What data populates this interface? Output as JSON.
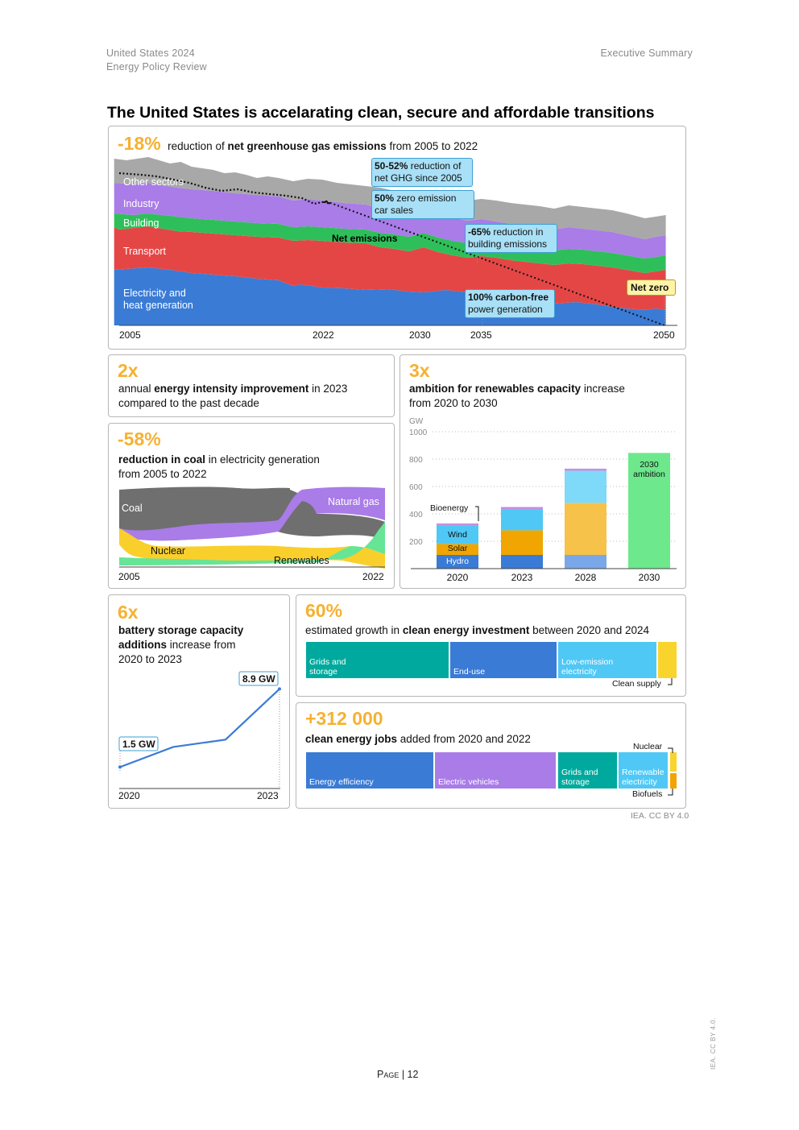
{
  "header": {
    "left_line1": "United States 2024",
    "left_line2": "Energy Policy Review",
    "right": "Executive Summary"
  },
  "title": "The United States is accelarating clean, secure and affordable transitions",
  "colors": {
    "accent": "#f6b131",
    "electricity": "#3a7bd5",
    "transport": "#e44646",
    "building": "#2fbf5a",
    "industry": "#a97ce8",
    "other": "#a8a8a8",
    "callout_bg": "#a8e0f7",
    "callout_border": "#3d9fd3",
    "netzero_bg": "#fff3a8"
  },
  "ghg": {
    "stat": "-18%",
    "desc_pre": "reduction",
    "desc_mid1": " of ",
    "desc_bold": "net greenhouse gas emissions",
    "desc_post": " from 2005 to 2022",
    "layers": [
      "Other sectors",
      "Industry",
      "Building",
      "Transport",
      "Electricity and",
      "heat generation"
    ],
    "net_label": "Net emissions",
    "axis": [
      "2005",
      "2022",
      "2030",
      "2035",
      "2050"
    ],
    "callouts": {
      "c1_bold": "50-52%",
      "c1_rest": " reduction of",
      "c1_line2": "net GHG since 2005",
      "c2_bold": "50%",
      "c2_rest": " zero emission",
      "c2_line2": "car sales",
      "c3_bold": "-65%",
      "c3_rest": " reduction in",
      "c3_line2": "building emissions",
      "c4_bold": "100% carbon-free",
      "c4_line2": "power generation",
      "c5": "Net zero"
    }
  },
  "intensity": {
    "stat": "2x",
    "pre": "annual ",
    "bold": "energy intensity improvement",
    "post": " in 2023",
    "line2": "compared to the past decade"
  },
  "coal": {
    "stat": "-58%",
    "bold": "reduction in coal",
    "post": " in electricity generation",
    "line2": "from 2005 to 2022",
    "labels": {
      "coal": "Coal",
      "gas": "Natural gas",
      "nuclear": "Nuclear",
      "renewables": "Renewables"
    },
    "axis": [
      "2005",
      "2022"
    ]
  },
  "renewables": {
    "stat": "3x",
    "bold": "ambition for renewables capacity",
    "post": " increase",
    "line2": "from 2020 to 2030",
    "unit": "GW",
    "chart_data": {
      "type": "bar",
      "stacked": true,
      "categories": [
        "2020",
        "2023",
        "2028",
        "2030"
      ],
      "y_ticks": [
        "1000",
        "800",
        "600",
        "400",
        "200"
      ],
      "ylim": [
        0,
        1000
      ],
      "series": [
        {
          "name": "Hydro",
          "values": [
            100,
            100,
            100,
            0
          ]
        },
        {
          "name": "Solar",
          "values": [
            80,
            180,
            380,
            0
          ]
        },
        {
          "name": "Wind",
          "values": [
            135,
            155,
            235,
            0
          ]
        },
        {
          "name": "Bioenergy",
          "values": [
            15,
            15,
            15,
            0
          ]
        },
        {
          "name": "2030 ambition",
          "values": [
            0,
            0,
            0,
            845
          ]
        }
      ],
      "annotation_line1": "2030",
      "annotation_line2": "ambition",
      "colors": {
        "Hydro": "#3a7bd5",
        "Solar": "#f0a500",
        "Wind": "#4fc8f5",
        "Bioenergy": "#c58fe0",
        "2030 ambition": "#6de88c"
      }
    }
  },
  "battery": {
    "stat": "6x",
    "bold_line1": "battery storage capacity",
    "bold_line2": "additions",
    "post": " increase from",
    "line3": "2020 to 2023",
    "chart_data": {
      "type": "line",
      "x": [
        "2020",
        "2021",
        "2022",
        "2023"
      ],
      "y": [
        1.5,
        3.4,
        4.1,
        8.9
      ],
      "start_label": "1.5 GW",
      "end_label": "8.9 GW",
      "axis": [
        "2020",
        "2023"
      ]
    }
  },
  "investment": {
    "stat": "60%",
    "pre": "estimated growth in ",
    "bold": "clean energy investment",
    "post": " between 2020 and 2024",
    "segments": [
      {
        "line1": "Grids and",
        "line2": "storage",
        "value": 34
      },
      {
        "line1": "End-use",
        "line2": "",
        "value": 25
      },
      {
        "line1": "Low-emission",
        "line2": "electricity",
        "value": 23
      },
      {
        "line1": "",
        "line2": "",
        "value": 4
      }
    ],
    "clean_supply": "Clean supply"
  },
  "jobs": {
    "stat": "+312 000",
    "bold": "clean energy jobs",
    "post": " added from 2020 and 2022",
    "segments": [
      {
        "line1": "",
        "line2": "Energy efficiency"
      },
      {
        "line1": "",
        "line2": "Electric vehicles"
      },
      {
        "line1": "Grids and",
        "line2": "storage"
      },
      {
        "line1": "Renewable",
        "line2": "electricity"
      }
    ],
    "nuclear": "Nuclear",
    "biofuels": "Biofuels"
  },
  "credit": "IEA. CC BY 4.0",
  "vertical_credit": "IEA. CC BY 4.0.",
  "footer": {
    "page_word": "Page",
    "page_num": " | 12"
  }
}
